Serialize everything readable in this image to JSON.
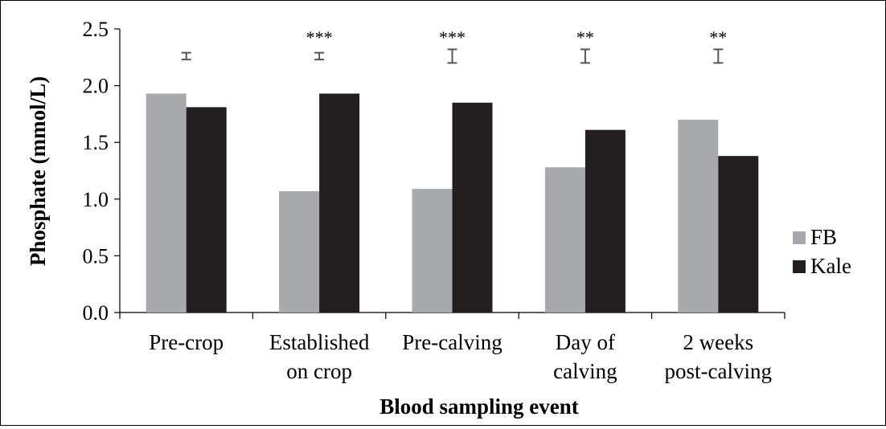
{
  "chart_data": {
    "type": "bar",
    "categories": [
      [
        "Pre-crop"
      ],
      [
        "Established",
        "on crop"
      ],
      [
        "Pre-calving"
      ],
      [
        "Day of",
        "calving"
      ],
      [
        "2 weeks",
        "post-calving"
      ]
    ],
    "series": [
      {
        "name": "FB",
        "values": [
          1.93,
          1.07,
          1.09,
          1.28,
          1.7
        ],
        "color": "#a7a9ac"
      },
      {
        "name": "Kale",
        "values": [
          1.81,
          1.93,
          1.85,
          1.61,
          1.38
        ],
        "color": "#231f20"
      }
    ],
    "error_bars": [
      {
        "center": 2.26,
        "low": 2.23,
        "high": 2.29
      },
      {
        "center": 2.26,
        "low": 2.23,
        "high": 2.29
      },
      {
        "center": 2.26,
        "low": 2.2,
        "high": 2.32
      },
      {
        "center": 2.26,
        "low": 2.2,
        "high": 2.32
      },
      {
        "center": 2.26,
        "low": 2.2,
        "high": 2.32
      }
    ],
    "significance": [
      "",
      "***",
      "***",
      "**",
      "**"
    ],
    "title": "",
    "xlabel": "Blood sampling event",
    "ylabel": "Phosphate (mmol/L)",
    "ylim": [
      0,
      2.5
    ],
    "yticks": [
      "0.0",
      "0.5",
      "1.0",
      "1.5",
      "2.0",
      "2.5"
    ],
    "legend_position": "right",
    "grid": false
  }
}
